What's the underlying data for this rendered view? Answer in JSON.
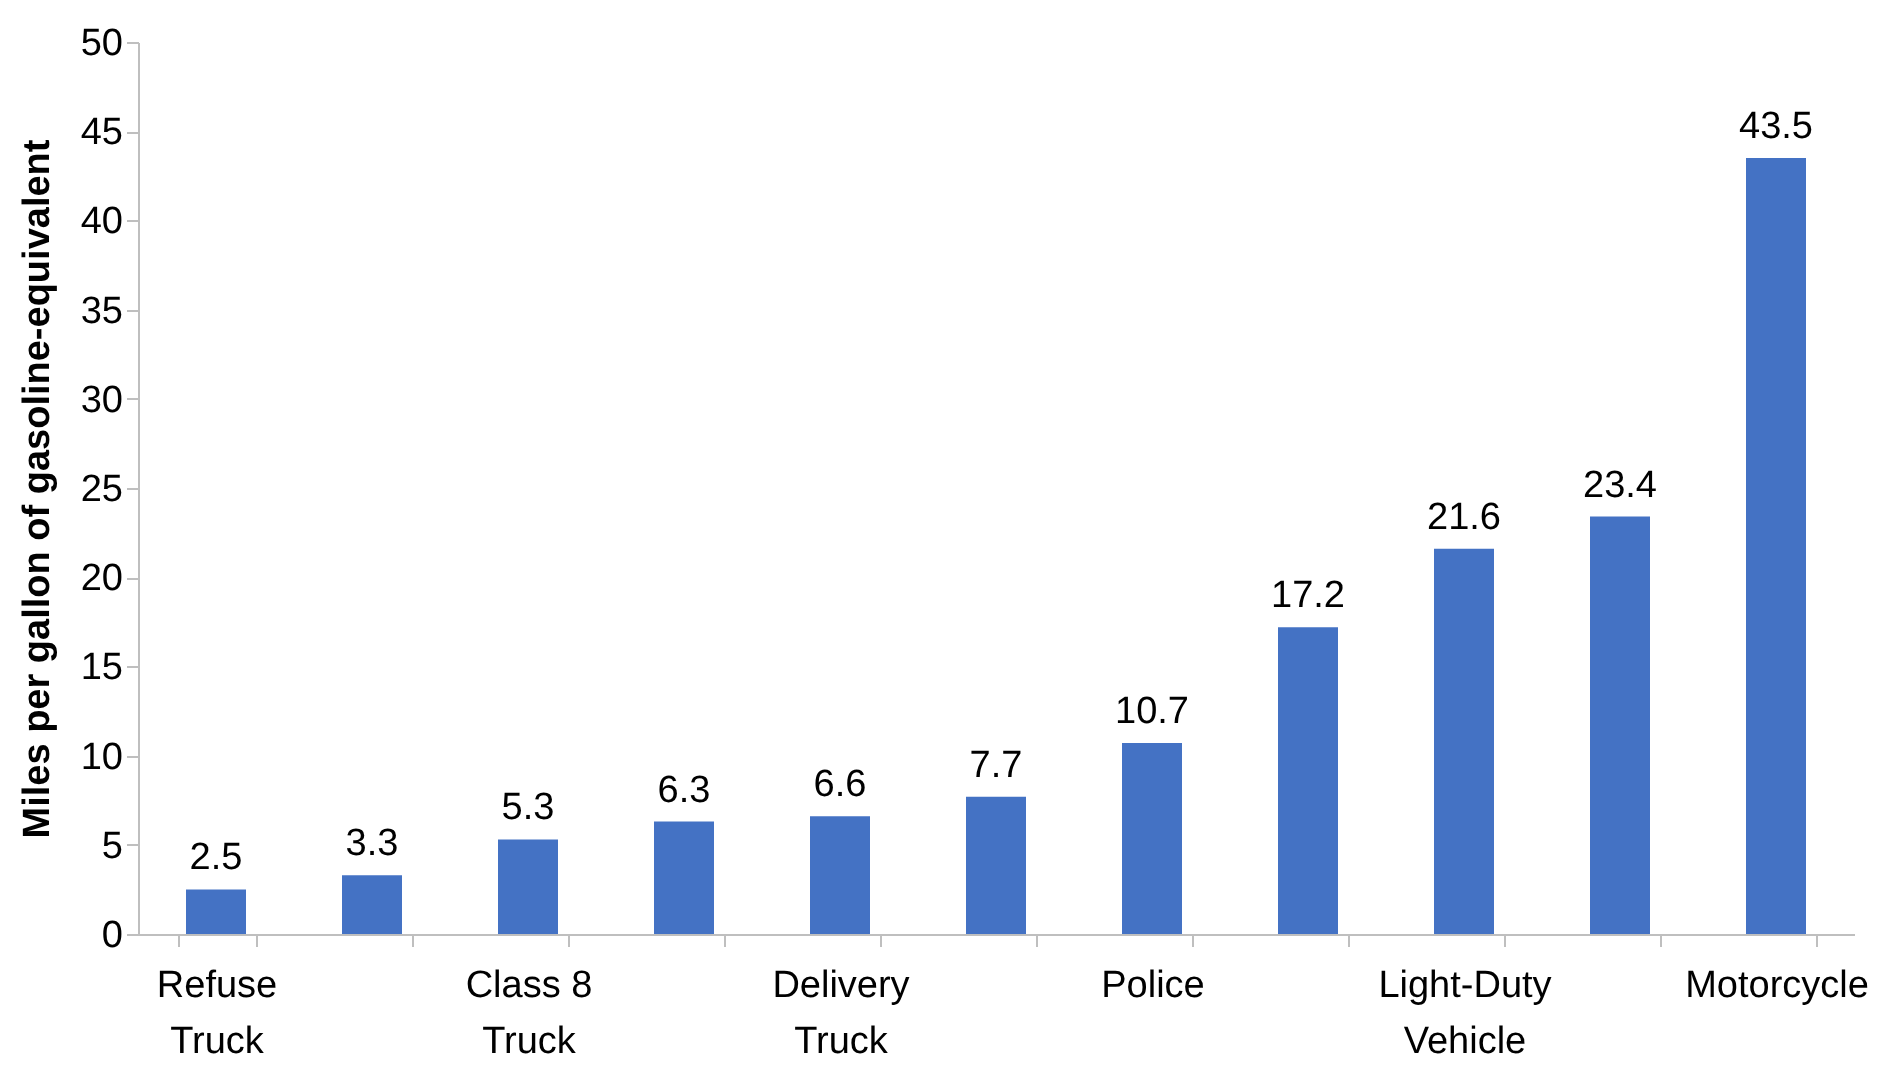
{
  "chart_data": {
    "type": "bar",
    "ylabel": "Miles per gallon of gasoline-equivalent",
    "categories": [
      "Refuse Truck",
      null,
      "Class 8 Truck",
      null,
      "Delivery Truck",
      null,
      "Police",
      null,
      "Light-Duty Vehicle",
      null,
      "Motorcycle"
    ],
    "values": [
      2.5,
      3.3,
      5.3,
      6.3,
      6.6,
      7.7,
      10.7,
      17.2,
      21.6,
      23.4,
      43.5
    ],
    "color": "#4472c4",
    "ylim": [
      0,
      50
    ],
    "yticks": [
      0,
      5,
      10,
      15,
      20,
      25,
      30,
      35,
      40,
      45,
      50
    ],
    "data_labels": true,
    "grid": false
  }
}
